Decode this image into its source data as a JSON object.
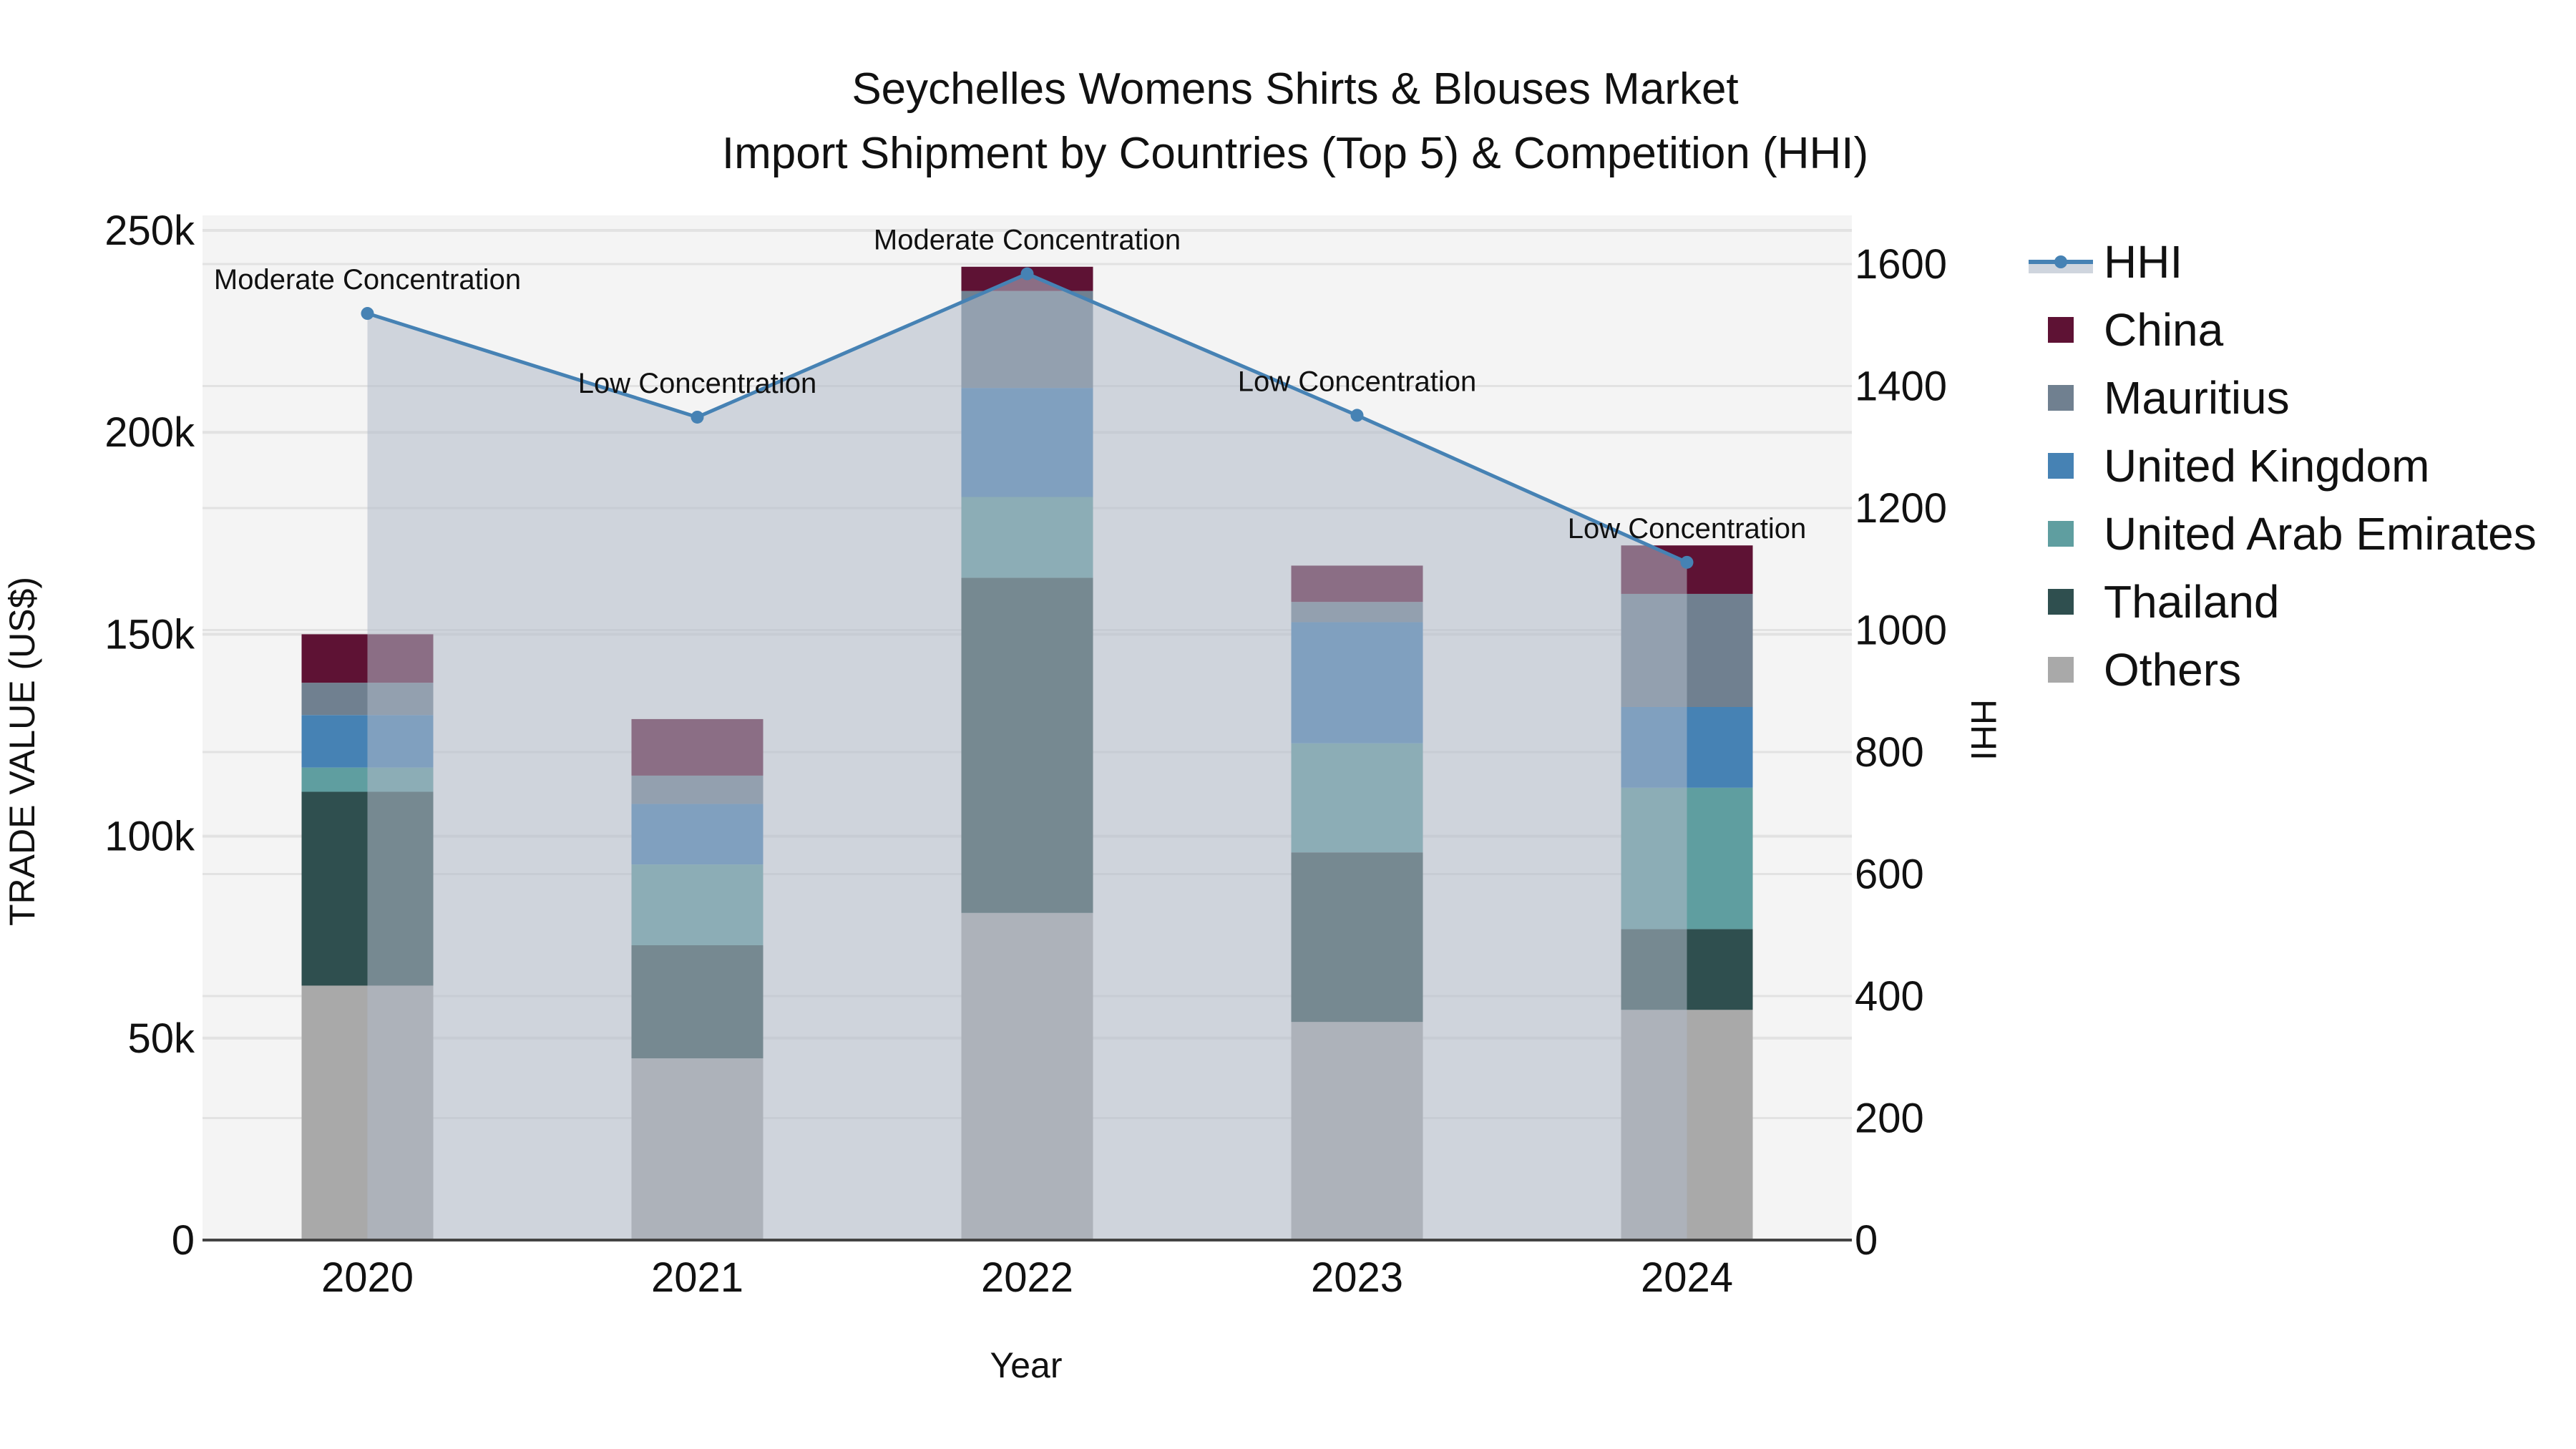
{
  "title": {
    "line1": "Seychelles Womens Shirts & Blouses Market",
    "line2": "Import Shipment by Countries (Top 5) & Competition (HHI)"
  },
  "axes": {
    "x_label": "Year",
    "y_left_label": "TRADE VALUE (US$)",
    "y_right_label": "HHI",
    "y_left_ticks": [
      "0",
      "50k",
      "100k",
      "150k",
      "200k",
      "250k"
    ],
    "y_right_ticks": [
      "0",
      "200",
      "400",
      "600",
      "800",
      "1000",
      "1200",
      "1400",
      "1600"
    ]
  },
  "legend": {
    "items": [
      {
        "label": "HHI",
        "color": "#4682B4",
        "kind": "line"
      },
      {
        "label": "China",
        "color": "#5E1234",
        "kind": "box"
      },
      {
        "label": "Mauritius",
        "color": "#708090",
        "kind": "box"
      },
      {
        "label": "United Kingdom",
        "color": "#4682B4",
        "kind": "box"
      },
      {
        "label": "United Arab Emirates",
        "color": "#5F9EA0",
        "kind": "box"
      },
      {
        "label": "Thailand",
        "color": "#2F4F4F",
        "kind": "box"
      },
      {
        "label": "Others",
        "color": "#A9A9A9",
        "kind": "box"
      }
    ]
  },
  "chart_data": {
    "type": "bar",
    "title": "Seychelles Womens Shirts & Blouses Market — Import Shipment by Countries (Top 5) & Competition (HHI)",
    "xlabel": "Year",
    "ylabel": "TRADE VALUE (US$)",
    "y2label": "HHI",
    "ylim": [
      0,
      255000
    ],
    "y2lim": [
      0,
      1660
    ],
    "stacked": true,
    "categories": [
      "2020",
      "2021",
      "2022",
      "2023",
      "2024"
    ],
    "series": [
      {
        "name": "Others",
        "color": "#A9A9A9",
        "values": [
          63000,
          45000,
          81000,
          54000,
          57000
        ]
      },
      {
        "name": "Thailand",
        "color": "#2F4F4F",
        "values": [
          48000,
          28000,
          83000,
          42000,
          20000
        ]
      },
      {
        "name": "United Arab Emirates",
        "color": "#5F9EA0",
        "values": [
          6000,
          20000,
          20000,
          27000,
          35000
        ]
      },
      {
        "name": "United Kingdom",
        "color": "#4682B4",
        "values": [
          13000,
          15000,
          27000,
          30000,
          20000
        ]
      },
      {
        "name": "Mauritius",
        "color": "#708090",
        "values": [
          8000,
          7000,
          24000,
          5000,
          28000
        ]
      },
      {
        "name": "China",
        "color": "#5E1234",
        "values": [
          12000,
          14000,
          6000,
          9000,
          12000
        ]
      }
    ],
    "line_series": {
      "name": "HHI",
      "color": "#4682B4",
      "axis": "right",
      "values": [
        1519,
        1349,
        1584,
        1352,
        1111
      ],
      "annotations": [
        "Moderate Concentration",
        "Low Concentration",
        "Moderate Concentration",
        "Low Concentration",
        "Low Concentration"
      ]
    },
    "grid": true,
    "legend_position": "right"
  }
}
